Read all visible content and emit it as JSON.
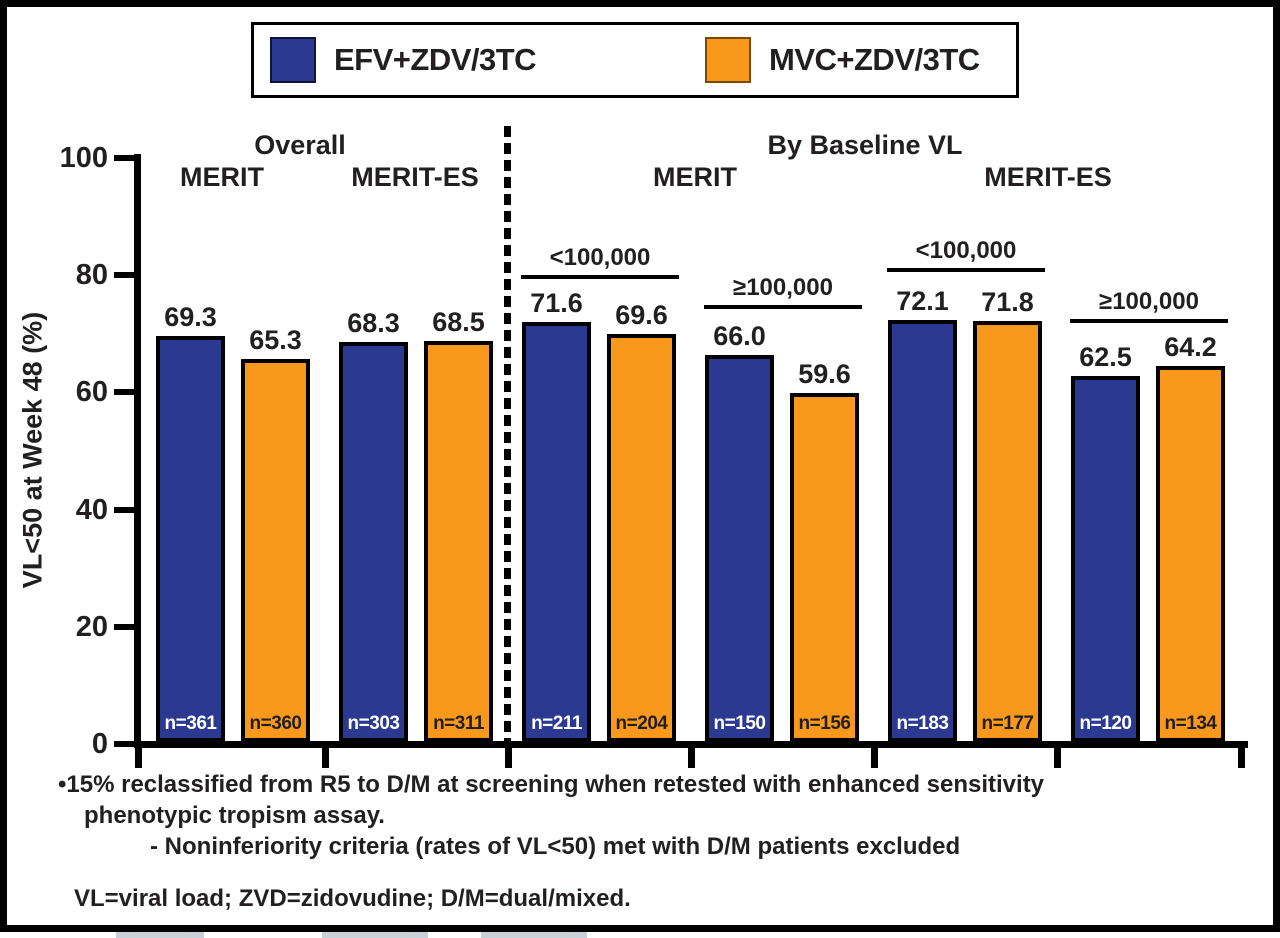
{
  "chart_data": {
    "type": "bar",
    "title": "",
    "xlabel": "",
    "ylabel": "VL<50 at Week 48 (%)",
    "ylim": [
      0,
      100
    ],
    "ytick_labels": [
      "100",
      "80",
      "60",
      "40",
      "20",
      "0"
    ],
    "grid": false,
    "legend_position": "top",
    "legend": [
      {
        "name": "EFV+ZDV/3TC",
        "color": "#2B3990"
      },
      {
        "name": "MVC+ZDV/3TC",
        "color": "#F8981D"
      }
    ],
    "section_headers": {
      "overall": "Overall",
      "overall_merit": "MERIT",
      "overall_merit_es": "MERIT-ES",
      "by_baseline_vl": "By Baseline VL",
      "bvl_merit": "MERIT",
      "bvl_merit_es": "MERIT-ES"
    },
    "slots": [
      {
        "section": "Overall",
        "study": "MERIT",
        "subgroup": "",
        "bars": [
          {
            "series": "EFV+ZDV/3TC",
            "value": 69.3,
            "label": "69.3",
            "n": "n=361"
          },
          {
            "series": "MVC+ZDV/3TC",
            "value": 65.3,
            "label": "65.3",
            "n": "n=360"
          }
        ]
      },
      {
        "section": "Overall",
        "study": "MERIT-ES",
        "subgroup": "",
        "bars": [
          {
            "series": "EFV+ZDV/3TC",
            "value": 68.3,
            "label": "68.3",
            "n": "n=303"
          },
          {
            "series": "MVC+ZDV/3TC",
            "value": 68.5,
            "label": "68.5",
            "n": "n=311"
          }
        ]
      },
      {
        "section": "By Baseline VL",
        "study": "MERIT",
        "subgroup": "<100,000",
        "bars": [
          {
            "series": "EFV+ZDV/3TC",
            "value": 71.6,
            "label": "71.6",
            "n": "n=211"
          },
          {
            "series": "MVC+ZDV/3TC",
            "value": 69.6,
            "label": "69.6",
            "n": "n=204"
          }
        ]
      },
      {
        "section": "By Baseline VL",
        "study": "MERIT",
        "subgroup": "≥100,000",
        "bars": [
          {
            "series": "EFV+ZDV/3TC",
            "value": 66.0,
            "label": "66.0",
            "n": "n=150"
          },
          {
            "series": "MVC+ZDV/3TC",
            "value": 59.6,
            "label": "59.6",
            "n": "n=156"
          }
        ]
      },
      {
        "section": "By Baseline VL",
        "study": "MERIT-ES",
        "subgroup": "<100,000",
        "bars": [
          {
            "series": "EFV+ZDV/3TC",
            "value": 72.1,
            "label": "72.1",
            "n": "n=183"
          },
          {
            "series": "MVC+ZDV/3TC",
            "value": 71.8,
            "label": "71.8",
            "n": "n=177"
          }
        ]
      },
      {
        "section": "By Baseline VL",
        "study": "MERIT-ES",
        "subgroup": "≥100,000",
        "bars": [
          {
            "series": "EFV+ZDV/3TC",
            "value": 62.5,
            "label": "62.5",
            "n": "n=120"
          },
          {
            "series": "MVC+ZDV/3TC",
            "value": 64.2,
            "label": "64.2",
            "n": "n=134"
          }
        ]
      }
    ],
    "footnotes": {
      "bullet_line1": "•15% reclassified from R5 to D/M at screening when retested with enhanced sensitivity",
      "bullet_line2": "phenotypic tropism assay.",
      "sub_line": "- Noninferiority criteria (rates of VL<50) met with D/M patients excluded",
      "abbrev_line": "VL=viral load; ZVD=zidovudine; D/M=dual/mixed."
    }
  }
}
